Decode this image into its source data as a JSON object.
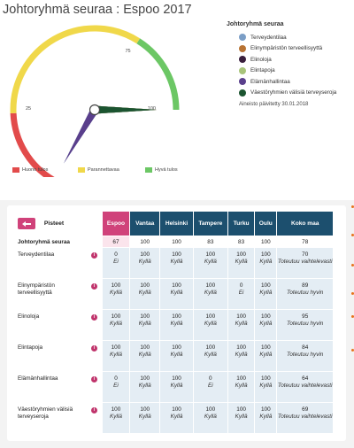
{
  "header": {
    "title": "Johtoryhmä seuraa : Espoo 2017"
  },
  "gauge": {
    "min_tick_label": "25",
    "max_tick_label": "75",
    "end_label": "100",
    "scale_min": 0,
    "scale_max": 100,
    "color_bad": "#e24b4b",
    "color_mid": "#f0d84a",
    "color_good": "#6cc765",
    "needles": [
      {
        "name": "Terveydentilaa",
        "value": 0,
        "color": "#7b9ec6"
      },
      {
        "name": "Elinympäristön terveellisyyttä",
        "value": 100,
        "color": "#b87333"
      },
      {
        "name": "Elinoloja",
        "value": 100,
        "color": "#3a1f3d"
      },
      {
        "name": "Elintapoja",
        "value": 100,
        "color": "#a8c47a"
      },
      {
        "name": "Elämänhallintaa",
        "value": 0,
        "color": "#5a3f8c"
      },
      {
        "name": "Väestöryhmien välisiä terveyseroja",
        "value": 100,
        "color": "#1b5430"
      }
    ]
  },
  "scale_legend": {
    "bad": "Huono tulos",
    "mid": "Parannettavaa",
    "good": "Hyvä tulos"
  },
  "legend": {
    "title": "Johtoryhmä seuraa",
    "items": [
      {
        "label": "Terveydentilaa",
        "color": "#7b9ec6"
      },
      {
        "label": "Elinympäristön terveellisyyttä",
        "color": "#b87333"
      },
      {
        "label": "Elinoloja",
        "color": "#3a1f3d"
      },
      {
        "label": "Elintapoja",
        "color": "#a8c47a"
      },
      {
        "label": "Elämänhallintaa",
        "color": "#5a3f8c"
      },
      {
        "label": "Väestöryhmien välisiä terveyseroja",
        "color": "#1b5430"
      }
    ],
    "updated": "Aineisto päivitetty 30.01.2018"
  },
  "table": {
    "pisteet_label": "Pisteet",
    "columns": [
      "Espoo",
      "Vantaa",
      "Helsinki",
      "Tampere",
      "Turku",
      "Oulu",
      "Koko maa"
    ],
    "summary": {
      "label": "Johtoryhmä seuraa",
      "values": [
        "67",
        "100",
        "100",
        "83",
        "83",
        "100",
        "78"
      ]
    },
    "rows": [
      {
        "label": "Terveydentilaa",
        "cells": [
          {
            "value": "0",
            "sub": "Ei"
          },
          {
            "value": "100",
            "sub": "Kyllä"
          },
          {
            "value": "100",
            "sub": "Kyllä"
          },
          {
            "value": "100",
            "sub": "Kyllä"
          },
          {
            "value": "100",
            "sub": "Kyllä"
          },
          {
            "value": "100",
            "sub": "Kyllä"
          },
          {
            "value": "70",
            "sub": "Toteutuu vaihtelevasti"
          }
        ]
      },
      {
        "label": "Elinympäristön terveellisyyttä",
        "cells": [
          {
            "value": "100",
            "sub": "Kyllä"
          },
          {
            "value": "100",
            "sub": "Kyllä"
          },
          {
            "value": "100",
            "sub": "Kyllä"
          },
          {
            "value": "100",
            "sub": "Kyllä"
          },
          {
            "value": "0",
            "sub": "Ei"
          },
          {
            "value": "100",
            "sub": "Kyllä"
          },
          {
            "value": "89",
            "sub": "Toteutuu hyvin"
          }
        ]
      },
      {
        "label": "Elinoloja",
        "cells": [
          {
            "value": "100",
            "sub": "Kyllä"
          },
          {
            "value": "100",
            "sub": "Kyllä"
          },
          {
            "value": "100",
            "sub": "Kyllä"
          },
          {
            "value": "100",
            "sub": "Kyllä"
          },
          {
            "value": "100",
            "sub": "Kyllä"
          },
          {
            "value": "100",
            "sub": "Kyllä"
          },
          {
            "value": "95",
            "sub": "Toteutuu hyvin"
          }
        ]
      },
      {
        "label": "Elintapoja",
        "cells": [
          {
            "value": "100",
            "sub": "Kyllä"
          },
          {
            "value": "100",
            "sub": "Kyllä"
          },
          {
            "value": "100",
            "sub": "Kyllä"
          },
          {
            "value": "100",
            "sub": "Kyllä"
          },
          {
            "value": "100",
            "sub": "Kyllä"
          },
          {
            "value": "100",
            "sub": "Kyllä"
          },
          {
            "value": "84",
            "sub": "Toteutuu hyvin"
          }
        ]
      },
      {
        "label": "Elämänhallintaa",
        "cells": [
          {
            "value": "0",
            "sub": "Ei"
          },
          {
            "value": "100",
            "sub": "Kyllä"
          },
          {
            "value": "100",
            "sub": "Kyllä"
          },
          {
            "value": "0",
            "sub": "Ei"
          },
          {
            "value": "100",
            "sub": "Kyllä"
          },
          {
            "value": "100",
            "sub": "Kyllä"
          },
          {
            "value": "64",
            "sub": "Toteutuu vaihtelevasti"
          }
        ]
      },
      {
        "label": "Väestöryhmien välisiä terveyseroja",
        "cells": [
          {
            "value": "100",
            "sub": "Kyllä"
          },
          {
            "value": "100",
            "sub": "Kyllä"
          },
          {
            "value": "100",
            "sub": "Kyllä"
          },
          {
            "value": "100",
            "sub": "Kyllä"
          },
          {
            "value": "100",
            "sub": "Kyllä"
          },
          {
            "value": "100",
            "sub": "Kyllä"
          },
          {
            "value": "69",
            "sub": "Toteutuu vaihtelevasti"
          }
        ]
      }
    ],
    "highlight_color": "#d0427a",
    "header_color": "#1c4f6e"
  }
}
